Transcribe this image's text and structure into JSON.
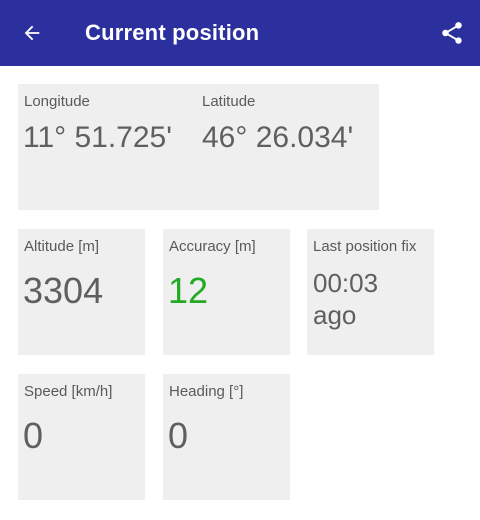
{
  "appbar": {
    "title": "Current position",
    "back_icon": "arrow-back-icon",
    "share_icon": "share-icon",
    "background": "#2c2f9e"
  },
  "position": {
    "longitude_label": "Longitude",
    "longitude_value": "11° 51.725'",
    "latitude_label": "Latitude",
    "latitude_value": "46° 26.034'"
  },
  "altitude": {
    "label": "Altitude [m]",
    "value": "3304"
  },
  "accuracy": {
    "label": "Accuracy [m]",
    "value": "12",
    "color": "#22aa22"
  },
  "last_fix": {
    "label": "Last position fix",
    "value": "00:03 ago"
  },
  "speed": {
    "label": "Speed [km/h]",
    "value": "0"
  },
  "heading": {
    "label": "Heading [°]",
    "value": "0"
  }
}
